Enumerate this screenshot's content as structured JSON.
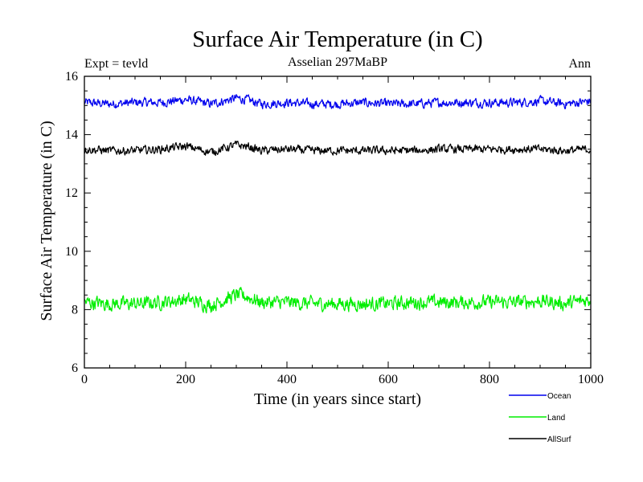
{
  "chart_data": {
    "type": "line",
    "title": "Surface Air Temperature (in C)",
    "subtitle_left": "Expt = tevld",
    "subtitle_center": "Asselian 297MaBP",
    "subtitle_right": "Ann",
    "xlabel": "Time (in years since start)",
    "ylabel": "Surface Air Temperature (in C)",
    "xlim": [
      0,
      1000
    ],
    "ylim": [
      6,
      16
    ],
    "xticks": [
      0,
      200,
      400,
      600,
      800,
      1000
    ],
    "yticks": [
      6,
      8,
      10,
      12,
      14,
      16
    ],
    "grid": false,
    "legend_position": "bottom-right",
    "series": [
      {
        "name": "Ocean",
        "color": "#0000ee",
        "x": [
          0,
          50,
          100,
          150,
          200,
          250,
          300,
          320,
          350,
          400,
          450,
          500,
          550,
          600,
          650,
          700,
          750,
          800,
          850,
          900,
          950,
          1000
        ],
        "values": [
          15.1,
          15.05,
          15.1,
          15.1,
          15.2,
          15.05,
          15.25,
          15.2,
          15.05,
          15.1,
          15.05,
          15.05,
          15.1,
          15.05,
          15.05,
          15.1,
          15.1,
          15.1,
          15.1,
          15.15,
          15.05,
          15.15
        ]
      },
      {
        "name": "Land",
        "color": "#00ee00",
        "x": [
          0,
          50,
          100,
          150,
          200,
          250,
          300,
          320,
          350,
          400,
          450,
          500,
          550,
          600,
          650,
          700,
          750,
          800,
          850,
          900,
          950,
          1000
        ],
        "values": [
          8.25,
          8.2,
          8.2,
          8.25,
          8.35,
          8.15,
          8.5,
          8.45,
          8.25,
          8.25,
          8.2,
          8.2,
          8.2,
          8.2,
          8.25,
          8.25,
          8.25,
          8.25,
          8.25,
          8.3,
          8.2,
          8.35
        ]
      },
      {
        "name": "AllSurf",
        "color": "#000000",
        "x": [
          0,
          50,
          100,
          150,
          200,
          250,
          300,
          320,
          350,
          400,
          450,
          500,
          550,
          600,
          650,
          700,
          750,
          800,
          850,
          900,
          950,
          1000
        ],
        "values": [
          13.5,
          13.45,
          13.45,
          13.5,
          13.6,
          13.4,
          13.65,
          13.6,
          13.45,
          13.5,
          13.45,
          13.45,
          13.45,
          13.45,
          13.45,
          13.5,
          13.5,
          13.5,
          13.5,
          13.5,
          13.45,
          13.5
        ]
      }
    ]
  }
}
